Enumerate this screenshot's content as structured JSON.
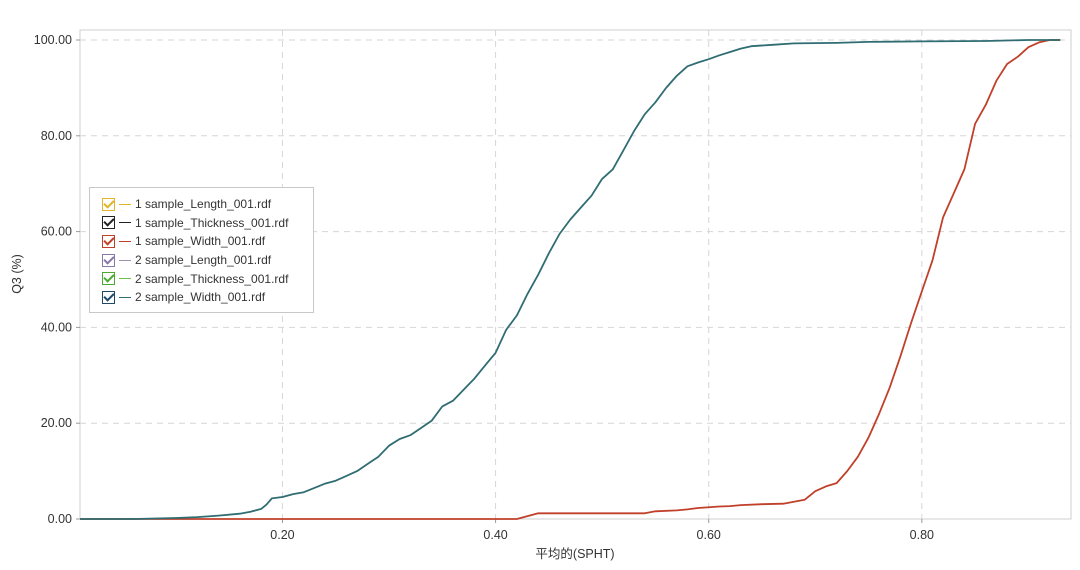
{
  "chart_data": {
    "type": "line",
    "xlabel": "平均的(SPHT)",
    "ylabel": "Q3 (%)",
    "xlim": [
      0.01,
      0.94
    ],
    "ylim": [
      0,
      100
    ],
    "grid": true,
    "legend_position": "left-middle",
    "x_ticks": [
      {
        "value": 0.2,
        "label": "0.20"
      },
      {
        "value": 0.4,
        "label": "0.40"
      },
      {
        "value": 0.6,
        "label": "0.60"
      },
      {
        "value": 0.8,
        "label": "0.80"
      }
    ],
    "y_ticks": [
      {
        "value": 0,
        "label": "0.00"
      },
      {
        "value": 20,
        "label": "20.00"
      },
      {
        "value": 40,
        "label": "40.00"
      },
      {
        "value": 60,
        "label": "60.00"
      },
      {
        "value": 80,
        "label": "80.00"
      },
      {
        "value": 100,
        "label": "100.00"
      }
    ],
    "series": [
      {
        "name": "1 sample_Length_001.rdf",
        "color": "#e0b52a",
        "check_color": "#e0b52a",
        "visible": true,
        "points": []
      },
      {
        "name": "1 sample_Thickness_001.rdf",
        "color": "#222222",
        "check_color": "#222222",
        "visible": true,
        "points": []
      },
      {
        "name": "1 sample_Width_001.rdf",
        "color": "#c0402a",
        "check_color": "#c0402a",
        "visible": true,
        "points": [
          [
            0.01,
            0
          ],
          [
            0.42,
            0
          ],
          [
            0.44,
            1.2
          ],
          [
            0.54,
            1.2
          ],
          [
            0.55,
            1.6
          ],
          [
            0.57,
            1.8
          ],
          [
            0.58,
            2
          ],
          [
            0.59,
            2.3
          ],
          [
            0.61,
            2.6
          ],
          [
            0.62,
            2.7
          ],
          [
            0.63,
            2.9
          ],
          [
            0.65,
            3.1
          ],
          [
            0.67,
            3.2
          ],
          [
            0.69,
            4
          ],
          [
            0.7,
            5.8
          ],
          [
            0.71,
            6.8
          ],
          [
            0.72,
            7.5
          ],
          [
            0.73,
            10
          ],
          [
            0.74,
            13
          ],
          [
            0.75,
            17
          ],
          [
            0.76,
            22
          ],
          [
            0.77,
            27.5
          ],
          [
            0.78,
            34
          ],
          [
            0.79,
            41
          ],
          [
            0.8,
            47.5
          ],
          [
            0.81,
            54
          ],
          [
            0.82,
            63
          ],
          [
            0.83,
            68
          ],
          [
            0.84,
            73
          ],
          [
            0.85,
            82.5
          ],
          [
            0.86,
            86.5
          ],
          [
            0.87,
            91.5
          ],
          [
            0.88,
            95
          ],
          [
            0.89,
            96.5
          ],
          [
            0.9,
            98.5
          ],
          [
            0.91,
            99.5
          ],
          [
            0.92,
            100
          ],
          [
            0.93,
            100
          ]
        ]
      },
      {
        "name": "2 sample_Length_001.rdf",
        "color": "#9b8fb3",
        "check_color": "#8878a8",
        "visible": true,
        "points": []
      },
      {
        "name": "2 sample_Thickness_001.rdf",
        "color": "#6ac24a",
        "check_color": "#4caa32",
        "visible": true,
        "points": []
      },
      {
        "name": "2 sample_Width_001.rdf",
        "color": "#2f6d72",
        "check_color": "#1f4a6a",
        "visible": true,
        "points": [
          [
            0.01,
            0
          ],
          [
            0.06,
            0
          ],
          [
            0.08,
            0.1
          ],
          [
            0.1,
            0.2
          ],
          [
            0.12,
            0.4
          ],
          [
            0.14,
            0.7
          ],
          [
            0.16,
            1.1
          ],
          [
            0.17,
            1.5
          ],
          [
            0.18,
            2.1
          ],
          [
            0.185,
            3
          ],
          [
            0.19,
            4.3
          ],
          [
            0.2,
            4.6
          ],
          [
            0.21,
            5.2
          ],
          [
            0.22,
            5.6
          ],
          [
            0.23,
            6.5
          ],
          [
            0.24,
            7.4
          ],
          [
            0.25,
            8
          ],
          [
            0.26,
            9
          ],
          [
            0.27,
            10
          ],
          [
            0.28,
            11.5
          ],
          [
            0.29,
            13
          ],
          [
            0.3,
            15.3
          ],
          [
            0.31,
            16.7
          ],
          [
            0.32,
            17.5
          ],
          [
            0.33,
            19
          ],
          [
            0.34,
            20.5
          ],
          [
            0.35,
            23.5
          ],
          [
            0.36,
            24.7
          ],
          [
            0.37,
            27
          ],
          [
            0.38,
            29.3
          ],
          [
            0.39,
            32
          ],
          [
            0.4,
            34.7
          ],
          [
            0.41,
            39.5
          ],
          [
            0.42,
            42.5
          ],
          [
            0.43,
            47
          ],
          [
            0.44,
            51
          ],
          [
            0.45,
            55.5
          ],
          [
            0.46,
            59.5
          ],
          [
            0.47,
            62.5
          ],
          [
            0.48,
            65
          ],
          [
            0.49,
            67.5
          ],
          [
            0.5,
            71
          ],
          [
            0.51,
            73
          ],
          [
            0.52,
            77
          ],
          [
            0.53,
            81
          ],
          [
            0.54,
            84.5
          ],
          [
            0.55,
            87
          ],
          [
            0.56,
            90
          ],
          [
            0.57,
            92.5
          ],
          [
            0.58,
            94.5
          ],
          [
            0.59,
            95.3
          ],
          [
            0.6,
            96
          ],
          [
            0.61,
            96.8
          ],
          [
            0.62,
            97.5
          ],
          [
            0.63,
            98.2
          ],
          [
            0.64,
            98.7
          ],
          [
            0.66,
            99
          ],
          [
            0.68,
            99.3
          ],
          [
            0.72,
            99.4
          ],
          [
            0.75,
            99.6
          ],
          [
            0.8,
            99.7
          ],
          [
            0.86,
            99.8
          ],
          [
            0.9,
            100
          ],
          [
            0.93,
            100
          ]
        ]
      }
    ]
  }
}
